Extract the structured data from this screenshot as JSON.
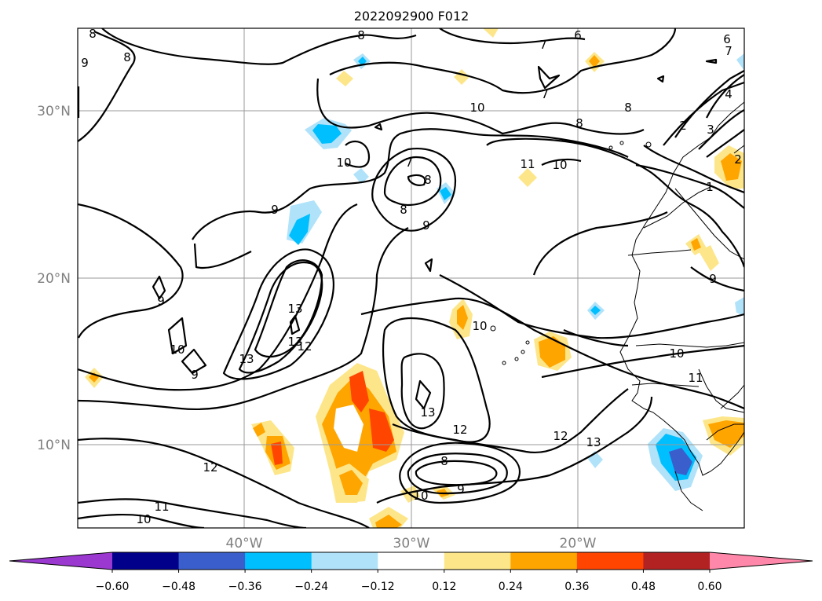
{
  "title": "2022092900 F012",
  "map": {
    "lon_range": [
      -50,
      -10
    ],
    "lat_range": [
      5,
      35
    ],
    "lat_labels": [
      "30°N",
      "20°N",
      "10°N"
    ],
    "lon_labels": [
      "40°W",
      "30°W",
      "20°W"
    ],
    "gridlines": true
  },
  "colorbar": {
    "orientation": "horizontal",
    "extend": "both",
    "ticks": [
      "−0.60",
      "−0.48",
      "−0.36",
      "−0.24",
      "−0.12",
      "0.12",
      "0.24",
      "0.36",
      "0.48",
      "0.60"
    ],
    "colors": [
      "#9a38cf",
      "#00008b",
      "#3a5fcd",
      "#00bfff",
      "#b0e2fa",
      "#ffffff",
      "#fde68a",
      "#ffa500",
      "#ff4500",
      "#b22222",
      "#ff88aa"
    ]
  },
  "contour_labels": [
    "8",
    "8",
    "9",
    "8",
    "6",
    "7",
    "6",
    "7",
    "7",
    "10",
    "8",
    "8",
    "10",
    "7",
    "8",
    "10",
    "11",
    "10",
    "9",
    "8",
    "9",
    "2",
    "3",
    "4",
    "2",
    "1",
    "9",
    "9",
    "13",
    "13",
    "12",
    "13",
    "10",
    "9",
    "10",
    "13",
    "12",
    "11",
    "12",
    "13",
    "8",
    "9",
    "10",
    "12",
    "11",
    "10"
  ],
  "features": [
    "contours",
    "shaded-anomaly",
    "coastlines"
  ]
}
